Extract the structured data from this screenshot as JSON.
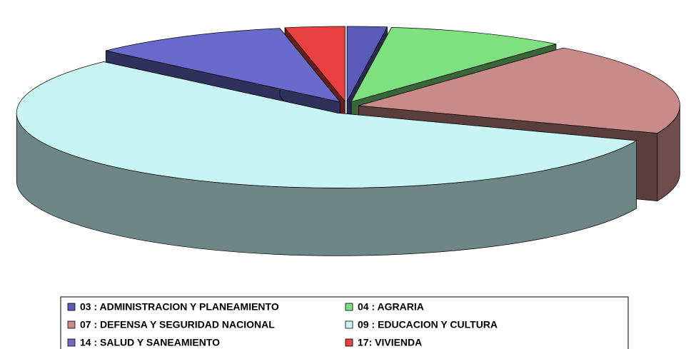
{
  "chart_data": {
    "type": "pie",
    "categories": [
      "03 : ADMINISTRACION Y PLANEAMIENTO",
      "04 : AGRARIA",
      "07 : DEFENSA Y SEGURIDAD NACIONAL",
      "09 : EDUCACION Y CULTURA",
      "14 : SALUD Y SANEAMIENTO",
      "17: VIVIENDA"
    ],
    "values": [
      2,
      9,
      20,
      56,
      10,
      3
    ],
    "colors": [
      "#5a5ab8",
      "#7ee07e",
      "#c98a8a",
      "#c8f4f4",
      "#6a6acc",
      "#e84040"
    ],
    "legend": "bottom"
  }
}
